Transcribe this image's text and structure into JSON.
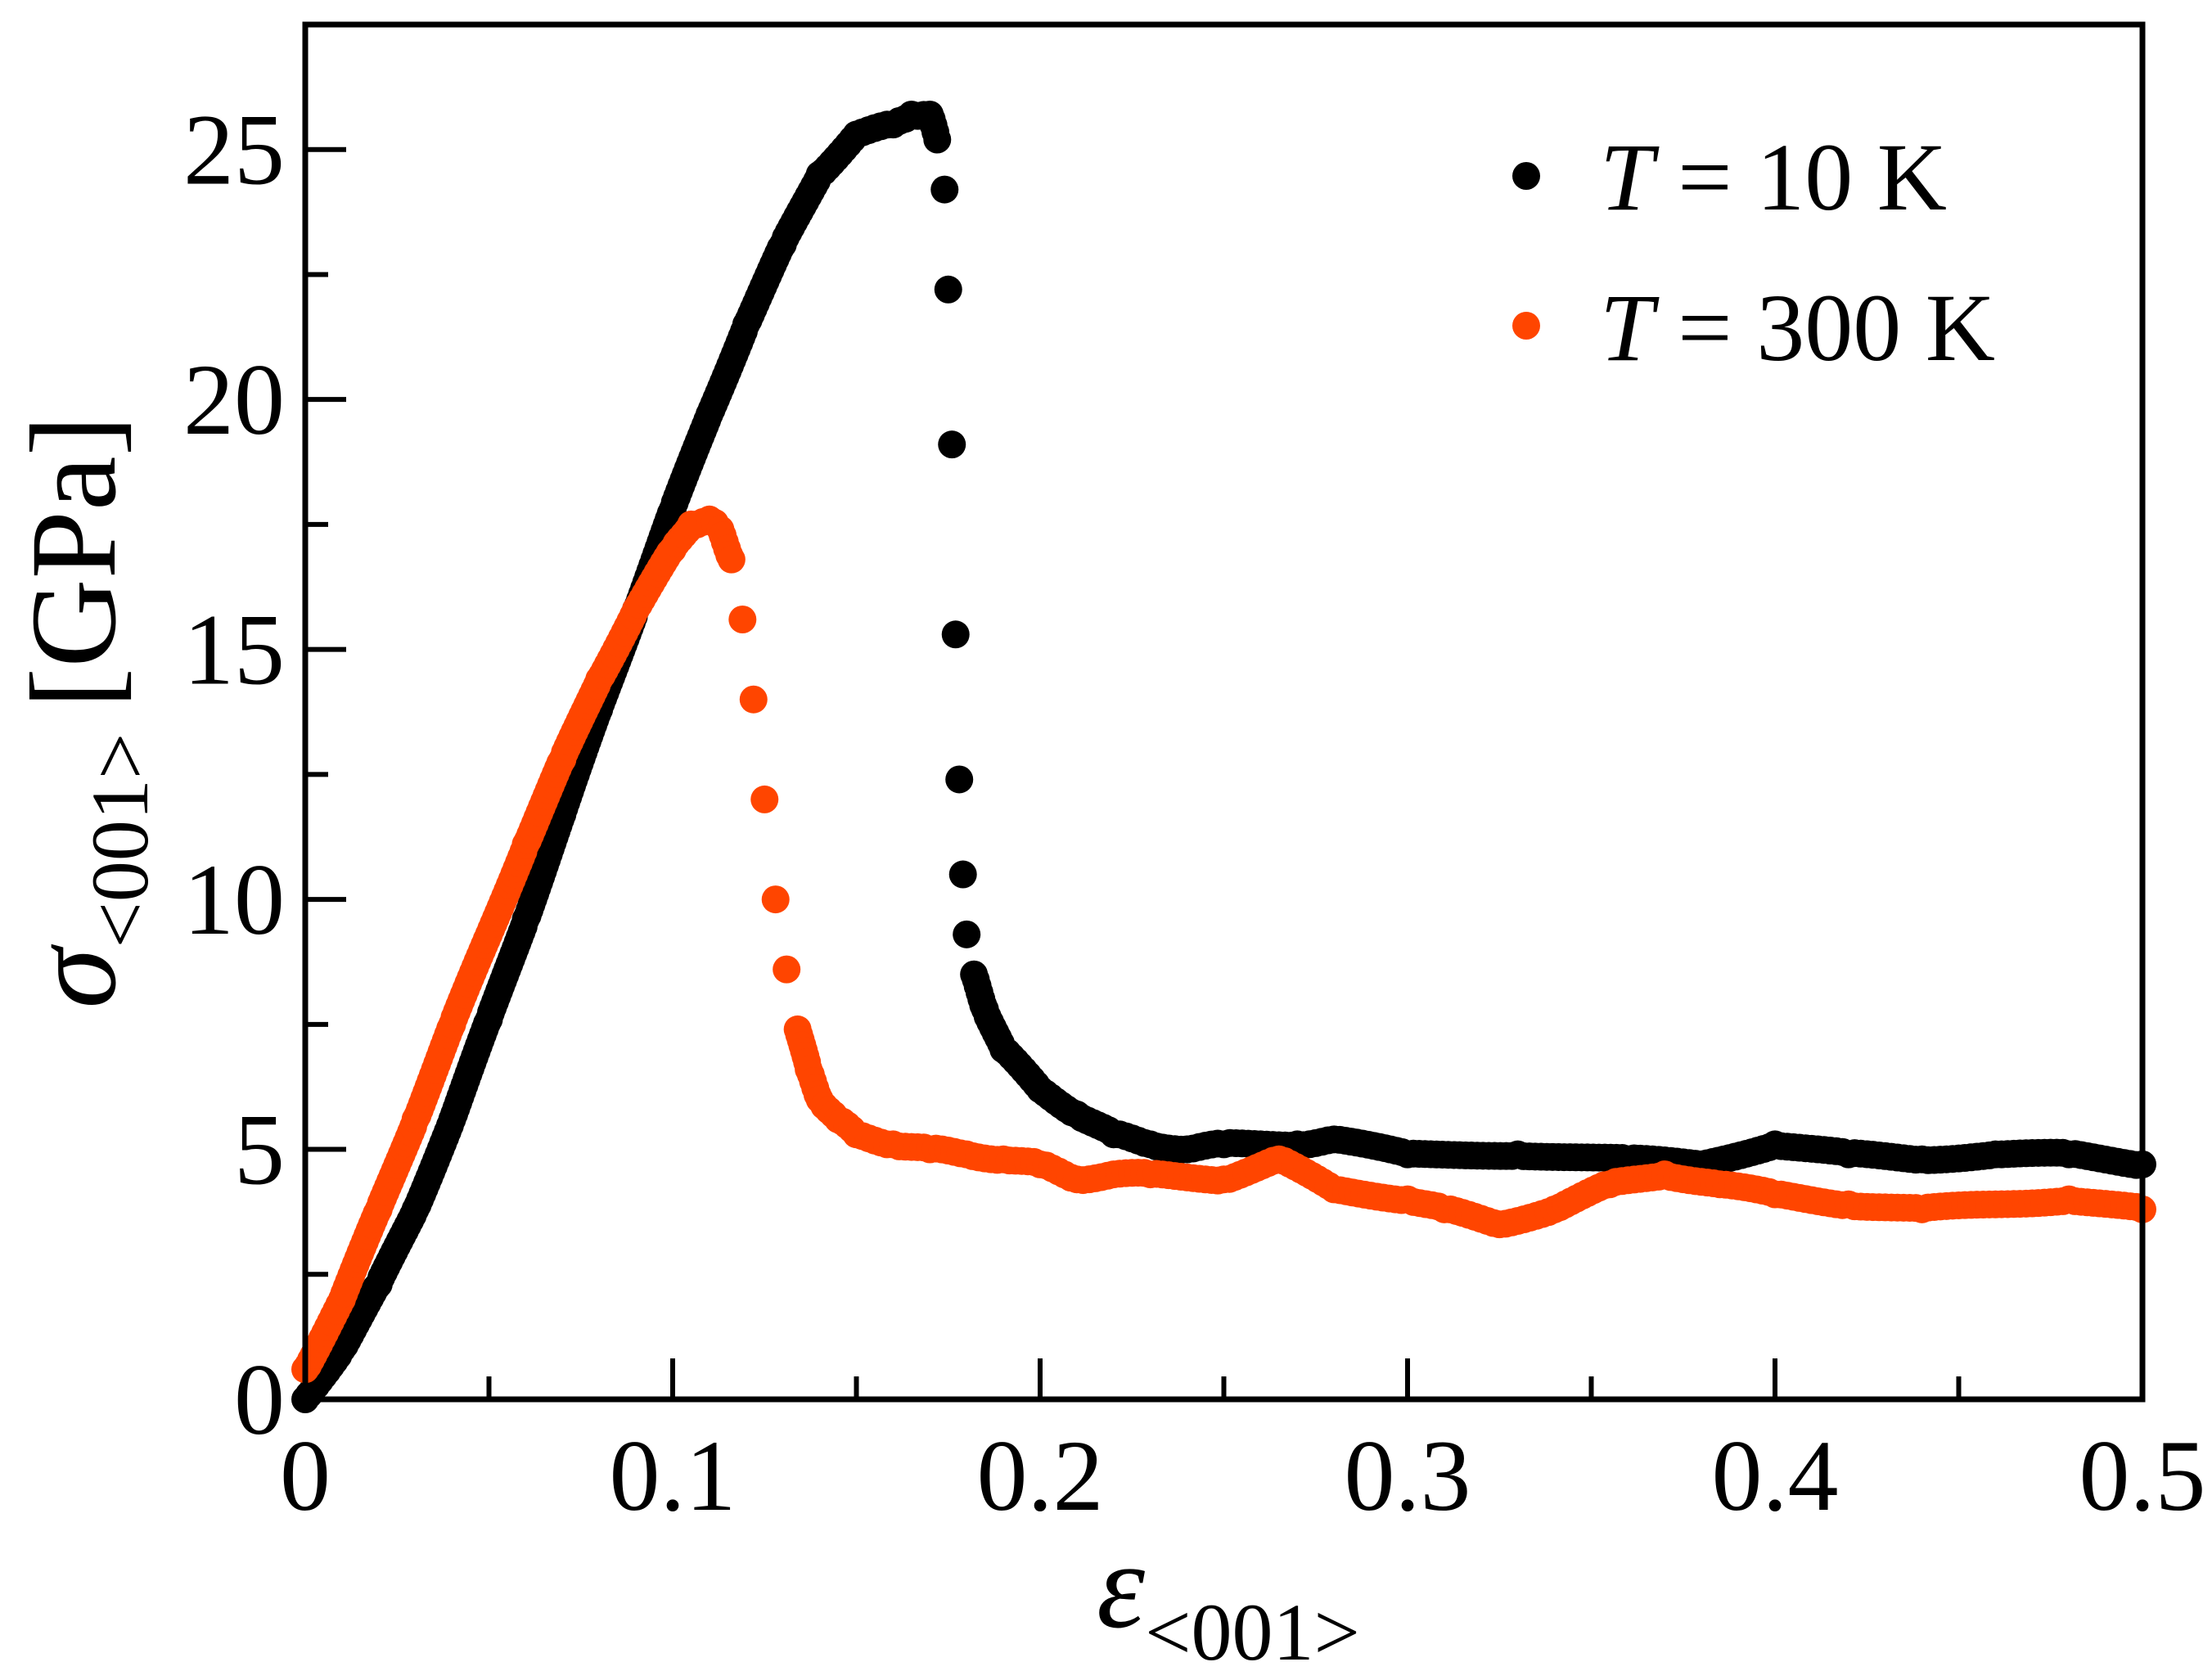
{
  "chart_data": {
    "type": "scatter",
    "title": "",
    "xlabel": {
      "symbol": "ε",
      "subscript": "<001>"
    },
    "ylabel": {
      "symbol": "σ",
      "subscript": "<001>",
      "unit": "[GPa]"
    },
    "xlim": [
      0,
      0.5
    ],
    "ylim": [
      0,
      27.5
    ],
    "xticks": [
      0,
      0.1,
      0.2,
      0.3,
      0.4,
      0.5
    ],
    "xtick_labels": [
      "0",
      "0.1",
      "0.2",
      "0.3",
      "0.4",
      "0.5"
    ],
    "xminor_step": 0.05,
    "yticks": [
      0,
      5,
      10,
      15,
      20,
      25
    ],
    "ytick_labels": [
      "0",
      "5",
      "10",
      "15",
      "20",
      "25"
    ],
    "yminor_step": 2.5,
    "grid": false,
    "legend_position": "top-right",
    "series": [
      {
        "name": "T = 10 K",
        "legend_symbol": "T",
        "legend_rest": " = 10 K",
        "color": "#000000",
        "x": [
          0,
          0.01,
          0.02,
          0.03,
          0.04,
          0.05,
          0.06,
          0.07,
          0.08,
          0.09,
          0.1,
          0.11,
          0.12,
          0.13,
          0.14,
          0.15,
          0.16,
          0.165,
          0.17,
          0.172,
          0.174,
          0.175,
          0.176,
          0.177,
          0.178,
          0.179,
          0.18,
          0.182,
          0.185,
          0.19,
          0.2,
          0.21,
          0.22,
          0.23,
          0.24,
          0.25,
          0.27,
          0.28,
          0.3,
          0.33,
          0.36,
          0.38,
          0.4,
          0.42,
          0.44,
          0.46,
          0.48,
          0.5
        ],
        "y": [
          0,
          1.0,
          2.3,
          3.8,
          5.6,
          7.6,
          9.6,
          11.7,
          13.8,
          15.8,
          17.8,
          19.7,
          21.5,
          23.1,
          24.5,
          25.3,
          25.5,
          25.7,
          25.7,
          25.2,
          24.2,
          22.2,
          19.1,
          15.3,
          12.4,
          10.5,
          9.3,
          8.5,
          7.8,
          7.0,
          6.2,
          5.7,
          5.3,
          5.1,
          5.0,
          5.1,
          5.1,
          5.2,
          4.9,
          4.9,
          4.8,
          4.7,
          5.1,
          4.9,
          4.8,
          4.9,
          4.9,
          4.7
        ]
      },
      {
        "name": "T = 300 K",
        "legend_symbol": "T",
        "legend_rest": " = 300 K",
        "color": "#ff4500",
        "x": [
          0,
          0.01,
          0.02,
          0.03,
          0.04,
          0.05,
          0.06,
          0.07,
          0.08,
          0.09,
          0.1,
          0.105,
          0.11,
          0.113,
          0.116,
          0.119,
          0.122,
          0.125,
          0.128,
          0.131,
          0.134,
          0.137,
          0.14,
          0.145,
          0.15,
          0.16,
          0.17,
          0.18,
          0.19,
          0.2,
          0.21,
          0.22,
          0.23,
          0.25,
          0.265,
          0.28,
          0.3,
          0.31,
          0.325,
          0.34,
          0.355,
          0.37,
          0.385,
          0.4,
          0.42,
          0.44,
          0.46,
          0.48,
          0.5
        ],
        "y": [
          0.6,
          2.0,
          3.8,
          5.6,
          7.5,
          9.3,
          11.1,
          12.8,
          14.4,
          15.8,
          17.0,
          17.5,
          17.6,
          17.4,
          16.8,
          15.6,
          14.0,
          12.0,
          10.0,
          8.6,
          7.4,
          6.6,
          6.0,
          5.6,
          5.3,
          5.1,
          5.0,
          4.9,
          4.8,
          4.7,
          4.4,
          4.5,
          4.5,
          4.4,
          4.8,
          4.2,
          4.0,
          3.8,
          3.5,
          3.8,
          4.3,
          4.5,
          4.3,
          4.1,
          3.9,
          3.8,
          3.9,
          4.0,
          3.8
        ]
      }
    ]
  }
}
